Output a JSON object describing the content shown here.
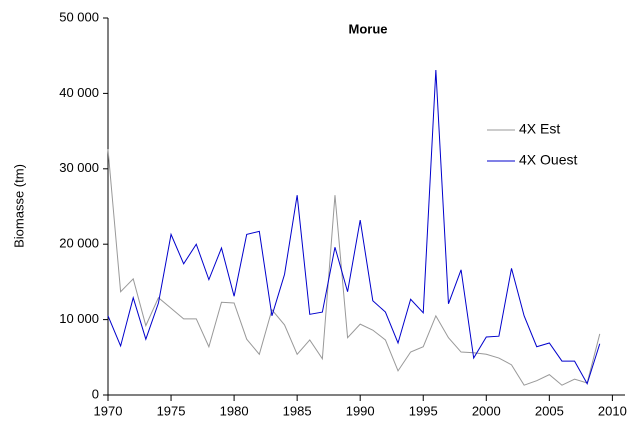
{
  "chart_data": {
    "type": "line",
    "title": "Morue",
    "y_label": "Biomasse (tm)",
    "x": [
      1970,
      1971,
      1972,
      1973,
      1974,
      1975,
      1976,
      1977,
      1978,
      1979,
      1980,
      1981,
      1982,
      1983,
      1984,
      1985,
      1986,
      1987,
      1988,
      1989,
      1990,
      1991,
      1992,
      1993,
      1994,
      1995,
      1996,
      1997,
      1998,
      1999,
      2000,
      2001,
      2002,
      2003,
      2004,
      2005,
      2006,
      2007,
      2008,
      2009
    ],
    "series": [
      {
        "name": "4X Est",
        "color": "#999999",
        "values": [
          32600,
          13700,
          15400,
          9200,
          12900,
          11500,
          10100,
          10100,
          6400,
          12300,
          12200,
          7400,
          5400,
          11300,
          9300,
          5400,
          7300,
          4800,
          26500,
          7600,
          9400,
          8600,
          7300,
          3200,
          5700,
          6400,
          10500,
          7600,
          5700,
          5600,
          5400,
          4900,
          4000,
          1300,
          1900,
          2700,
          1300,
          2100,
          1600,
          8100
        ]
      },
      {
        "name": "4X Ouest",
        "color": "#0000cc",
        "values": [
          10500,
          6500,
          12900,
          7400,
          12200,
          21300,
          17400,
          20000,
          15300,
          19500,
          13100,
          21300,
          21700,
          10500,
          16000,
          26500,
          10700,
          11000,
          19600,
          13700,
          23200,
          12500,
          11000,
          6900,
          12700,
          10900,
          43100,
          12100,
          16600,
          4900,
          7700,
          7800,
          16800,
          10500,
          6400,
          6900,
          4500,
          4500,
          1500,
          6800
        ]
      }
    ],
    "xlim": [
      1970,
      2011
    ],
    "xticks": [
      1970,
      1975,
      1980,
      1985,
      1990,
      1995,
      2000,
      2005,
      2010
    ],
    "ylim": [
      0,
      50000
    ],
    "yticks": [
      0,
      {
        "value": 10000,
        "label": "10 000"
      },
      {
        "value": 20000,
        "label": "20 000"
      },
      {
        "value": 30000,
        "label": "30 000"
      },
      {
        "value": 40000,
        "label": "40 000"
      },
      {
        "value": 50000,
        "label": "50 000"
      }
    ],
    "grid": false,
    "legend": "upper right"
  }
}
